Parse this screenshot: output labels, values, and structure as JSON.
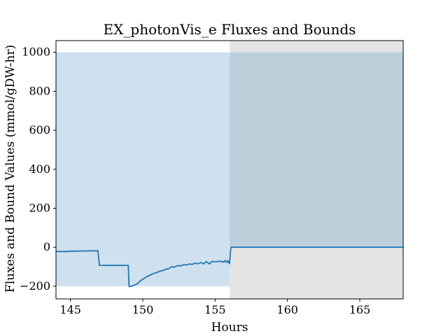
{
  "chart_data": {
    "type": "line",
    "title": "EX_photonVis_e Fluxes and Bounds",
    "xlabel": "Hours",
    "ylabel": "Fluxes and Bound Values (mmol/gDW-hr)",
    "xlim": [
      144,
      168
    ],
    "ylim": [
      -265,
      1060
    ],
    "xticks": [
      145,
      150,
      155,
      160,
      165
    ],
    "yticks": [
      -200,
      0,
      200,
      400,
      600,
      800,
      1000
    ],
    "grid": false,
    "legend": "none",
    "colors": {
      "flux_line": "#1f77b4",
      "bounds_fill": "#cfe0ee",
      "dark_overlay": "#bcd0dc",
      "gray_overlay": "#e5e5e5"
    },
    "bounds_band": {
      "x_start": 144,
      "x_end": 156,
      "lower": -200,
      "upper": 1000
    },
    "shaded_region": {
      "x_start": 156,
      "x_end": 168,
      "lower": -265,
      "upper": 1000,
      "axis_top": 1060
    },
    "series": [
      {
        "x": [
          144,
          144.8,
          145,
          145.2,
          146,
          146.9,
          147,
          149,
          149.05,
          149.3,
          149.6,
          149.8,
          150,
          150.3,
          150.6,
          150.8,
          151.0,
          151.2,
          151.4,
          151.6,
          151.8,
          152.0,
          152.2,
          152.4,
          152.6,
          152.8,
          153.0,
          153.2,
          153.4,
          153.6,
          153.8,
          154.0,
          154.2,
          154.4,
          154.6,
          154.8,
          155.0,
          155.2,
          155.4,
          155.6,
          155.7,
          155.8,
          155.9,
          156.0,
          156.05,
          156.1,
          168
        ],
        "y": [
          -22,
          -22,
          -20,
          -20,
          -19,
          -18,
          -93,
          -93,
          -202,
          -198,
          -188,
          -175,
          -164,
          -150,
          -140,
          -133,
          -129,
          -122,
          -120,
          -112,
          -110,
          -100,
          -102,
          -94,
          -96,
          -90,
          -91,
          -86,
          -88,
          -82,
          -85,
          -78,
          -85,
          -74,
          -85,
          -72,
          -75,
          -73,
          -72,
          -77,
          -68,
          -78,
          -70,
          -85,
          -30,
          0,
          0
        ]
      }
    ]
  }
}
